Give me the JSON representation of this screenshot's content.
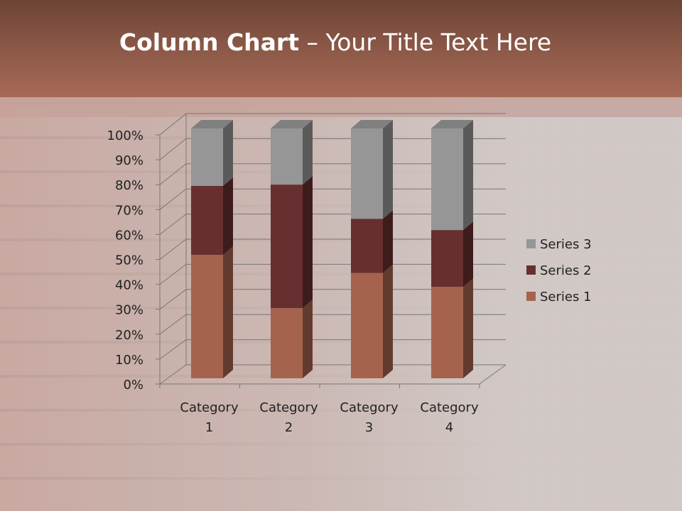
{
  "title": {
    "bold": "Column Chart",
    "rest": " – Your Title Text Here"
  },
  "chart_data": {
    "type": "bar",
    "stacking": "percent",
    "three_d": true,
    "categories": [
      "Category 1",
      "Category 2",
      "Category 3",
      "Category 4"
    ],
    "category_lines": [
      [
        "Category",
        "1"
      ],
      [
        "Category",
        "2"
      ],
      [
        "Category",
        "3"
      ],
      [
        "Category",
        "4"
      ]
    ],
    "series": [
      {
        "name": "Series 1",
        "values": [
          4.3,
          2.5,
          3.5,
          4.5
        ],
        "color": "#a5634d"
      },
      {
        "name": "Series 2",
        "values": [
          2.4,
          4.4,
          1.8,
          2.8
        ],
        "color": "#672f2f"
      },
      {
        "name": "Series 3",
        "values": [
          2,
          2,
          3,
          5
        ],
        "color": "#969696"
      }
    ],
    "yticks": [
      "0%",
      "10%",
      "20%",
      "30%",
      "40%",
      "50%",
      "60%",
      "70%",
      "80%",
      "90%",
      "100%"
    ],
    "ylim": [
      0,
      100
    ],
    "grid": true,
    "legend": "right"
  }
}
